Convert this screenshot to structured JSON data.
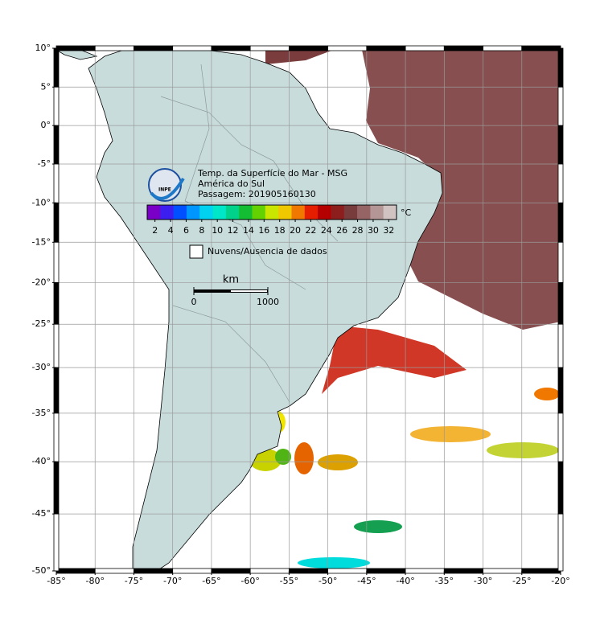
{
  "map": {
    "xlim": [
      -85,
      -20
    ],
    "ylim": [
      -50,
      10
    ],
    "xticks": [
      {
        "value": -85,
        "label": "-85°"
      },
      {
        "value": -80,
        "label": "-80°"
      },
      {
        "value": -75,
        "label": "-75°"
      },
      {
        "value": -70,
        "label": "-70°"
      },
      {
        "value": -65,
        "label": "-65°"
      },
      {
        "value": -60,
        "label": "-60°"
      },
      {
        "value": -55,
        "label": "-55°"
      },
      {
        "value": -50,
        "label": "-50°"
      },
      {
        "value": -45,
        "label": "-45°"
      },
      {
        "value": -40,
        "label": "-40°"
      },
      {
        "value": -35,
        "label": "-35°"
      },
      {
        "value": -30,
        "label": "-30°"
      },
      {
        "value": -25,
        "label": "-25°"
      },
      {
        "value": -20,
        "label": "-20°"
      }
    ],
    "yticks": [
      {
        "value": 10,
        "label": "10°"
      },
      {
        "value": 5,
        "label": "5°"
      },
      {
        "value": 0,
        "label": "0°"
      },
      {
        "value": -5,
        "label": "-5°"
      },
      {
        "value": -10,
        "label": "-10°"
      },
      {
        "value": -15,
        "label": "-15°"
      },
      {
        "value": -20,
        "label": "-20°"
      },
      {
        "value": -25,
        "label": "-25°"
      },
      {
        "value": -30,
        "label": "-30°"
      },
      {
        "value": -35,
        "label": "-35°"
      },
      {
        "value": -40,
        "label": "-40°"
      },
      {
        "value": -45,
        "label": "-45°"
      },
      {
        "value": -50,
        "label": "-50°"
      }
    ],
    "grid": true,
    "projection": "mercator"
  },
  "legend": {
    "logo_text": "INPE",
    "title": "Temp. da Superfície do Mar - MSG",
    "region": "América do Sul",
    "pass": "Passagem: 201905160130",
    "unit": "°C",
    "clim": [
      1,
      33
    ],
    "ticks": [
      2,
      4,
      6,
      8,
      10,
      12,
      14,
      16,
      18,
      20,
      22,
      24,
      26,
      28,
      30,
      32
    ],
    "colormap": [
      "#7a00c8",
      "#3c1ef0",
      "#0050ff",
      "#0096ff",
      "#00d2f0",
      "#00e6c8",
      "#00d28c",
      "#14be32",
      "#64d200",
      "#c8e600",
      "#f0c800",
      "#f07800",
      "#e61e00",
      "#b40000",
      "#8c1e1e",
      "#783c3c",
      "#966464",
      "#b49696",
      "#d2c3c3"
    ],
    "nodata": "Nuvens/Ausencia de dados",
    "scale_unit": "km",
    "scale_ticks": [
      0,
      1000
    ]
  }
}
